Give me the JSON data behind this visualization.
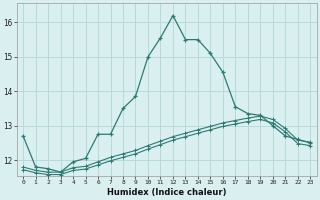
{
  "xlabel": "Humidex (Indice chaleur)",
  "bg_color": "#daf0f0",
  "grid_color": "#b8dada",
  "line_color": "#2d7a72",
  "ylim": [
    11.55,
    16.55
  ],
  "xlim": [
    -0.5,
    23.5
  ],
  "yticks": [
    12,
    13,
    14,
    15,
    16
  ],
  "xticks": [
    0,
    1,
    2,
    3,
    4,
    5,
    6,
    7,
    8,
    9,
    10,
    11,
    12,
    13,
    14,
    15,
    16,
    17,
    18,
    19,
    20,
    21,
    22,
    23
  ],
  "series1_x": [
    0,
    1,
    2,
    3,
    4,
    5,
    6,
    7,
    8,
    9,
    10,
    11,
    12,
    13,
    14,
    15,
    16,
    17,
    18,
    19,
    20,
    21,
    22,
    23
  ],
  "series1_y": [
    12.7,
    11.8,
    11.75,
    11.65,
    11.95,
    12.05,
    12.75,
    12.75,
    13.5,
    13.85,
    15.0,
    15.55,
    16.2,
    15.5,
    15.5,
    15.1,
    14.55,
    13.55,
    13.35,
    13.3,
    13.0,
    12.7,
    12.6,
    12.5
  ],
  "series2_x": [
    0,
    1,
    2,
    3,
    4,
    5,
    6,
    7,
    8,
    9,
    10,
    11,
    12,
    13,
    14,
    15,
    16,
    17,
    18,
    19,
    20,
    21,
    22,
    23
  ],
  "series2_y": [
    11.8,
    11.7,
    11.65,
    11.65,
    11.78,
    11.82,
    11.95,
    12.08,
    12.18,
    12.28,
    12.42,
    12.55,
    12.68,
    12.78,
    12.88,
    12.98,
    13.08,
    13.15,
    13.22,
    13.28,
    13.18,
    12.92,
    12.58,
    12.52
  ],
  "series3_x": [
    0,
    1,
    2,
    3,
    4,
    5,
    6,
    7,
    8,
    9,
    10,
    11,
    12,
    13,
    14,
    15,
    16,
    17,
    18,
    19,
    20,
    21,
    22,
    23
  ],
  "series3_y": [
    11.72,
    11.63,
    11.58,
    11.58,
    11.7,
    11.74,
    11.86,
    11.98,
    12.08,
    12.18,
    12.32,
    12.45,
    12.58,
    12.68,
    12.78,
    12.88,
    12.98,
    13.05,
    13.12,
    13.18,
    13.08,
    12.82,
    12.48,
    12.42
  ]
}
